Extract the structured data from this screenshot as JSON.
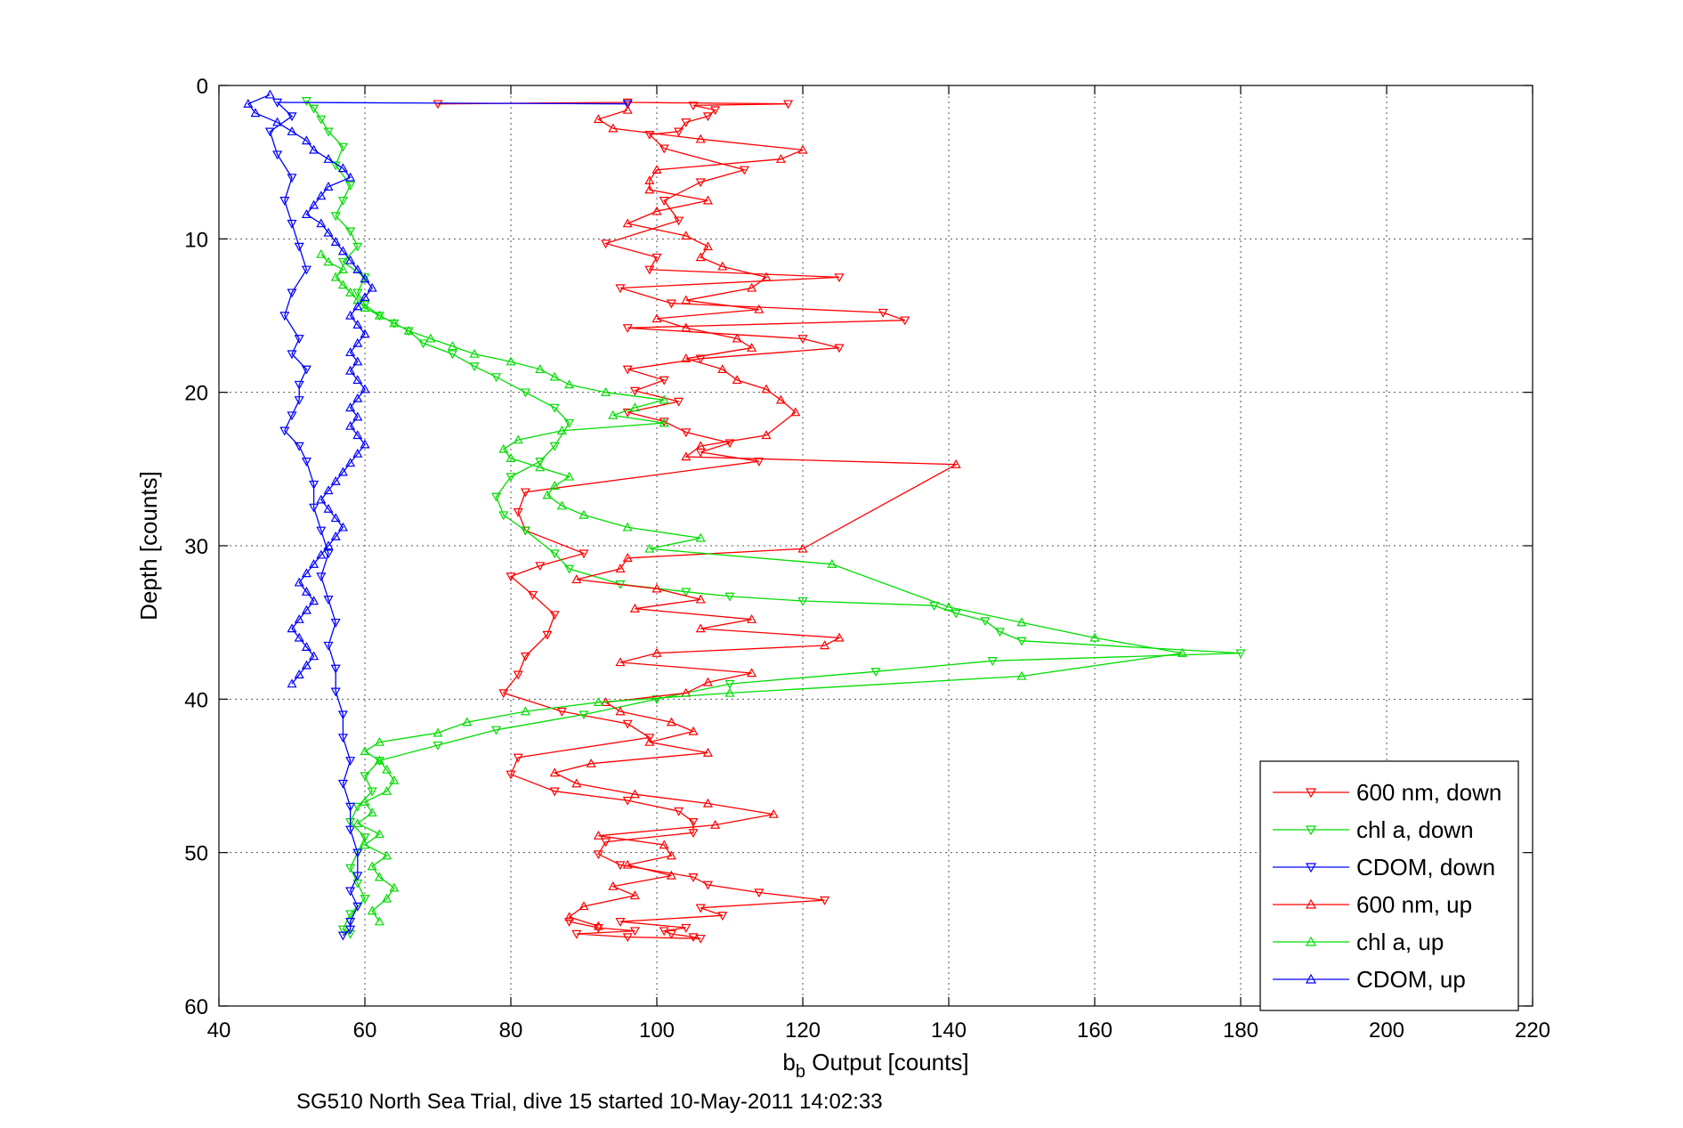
{
  "chart_data": {
    "type": "line",
    "title": "",
    "xlabel": {
      "main": "b",
      "subscript": "b",
      "rest": " Output [counts]"
    },
    "ylabel": "Depth [counts]",
    "caption": "SG510 North Sea Trial, dive 15 started 10-May-2011 14:02:33",
    "xlim": [
      40,
      220
    ],
    "ylim": [
      0,
      60
    ],
    "y_reversed": true,
    "x_ticks": [
      "40",
      "60",
      "80",
      "100",
      "120",
      "140",
      "160",
      "180",
      "200",
      "220"
    ],
    "y_ticks": [
      "0",
      "10",
      "20",
      "30",
      "40",
      "50",
      "60"
    ],
    "grid": true,
    "legend_position": "bottom-right",
    "series": [
      {
        "name": "600 nm, down",
        "color": "#ff0000",
        "marker": "down",
        "x": [
          70,
          96,
          118,
          105,
          108,
          107,
          104,
          103,
          99,
          101,
          112,
          106,
          101,
          103,
          93,
          100,
          99,
          125,
          95,
          102,
          131,
          134,
          96,
          120,
          125,
          106,
          96,
          101,
          97,
          103,
          96,
          101,
          104,
          110,
          106,
          114,
          82,
          81,
          82,
          90,
          84,
          80,
          83,
          86,
          85,
          82,
          81,
          79,
          87,
          96,
          99,
          81,
          80,
          86,
          96,
          103,
          105,
          105,
          93,
          92,
          95,
          105,
          107,
          114,
          123,
          106,
          109,
          95,
          104,
          101,
          102,
          105,
          106,
          96,
          89,
          97,
          92,
          88
        ],
        "y": [
          1.2,
          1.1,
          1.2,
          1.3,
          1.6,
          2,
          2.4,
          3,
          3.2,
          4.1,
          5.5,
          6.3,
          7.5,
          8.8,
          10.3,
          11.2,
          12,
          12.5,
          13.2,
          14.2,
          14.8,
          15.3,
          15.8,
          16.5,
          17.1,
          17.8,
          18.5,
          19.2,
          19.9,
          20.6,
          21.3,
          21.9,
          22.6,
          23.3,
          23.9,
          24.5,
          26.5,
          27.8,
          29,
          30.5,
          31.3,
          32,
          33.2,
          34.5,
          35.8,
          37.2,
          38.4,
          39.6,
          40.8,
          41.6,
          42.5,
          43.8,
          44.9,
          46,
          46.6,
          47.3,
          48,
          48.7,
          49.3,
          50.1,
          50.8,
          51.6,
          52.1,
          52.6,
          53.1,
          53.6,
          54.1,
          54.5,
          54.9,
          55.1,
          55.3,
          55.5,
          55.6,
          55.5,
          55.3,
          55.1,
          54.9,
          54.5
        ]
      },
      {
        "name": "chl a, down",
        "color": "#00dd00",
        "marker": "down",
        "x": [
          52,
          53,
          54,
          55,
          57,
          56,
          58,
          57,
          56,
          58,
          59,
          57,
          60,
          59,
          60,
          62,
          64,
          66,
          68,
          72,
          75,
          78,
          82,
          86,
          88,
          86,
          84,
          80,
          78,
          79,
          82,
          86,
          88,
          95,
          104,
          110,
          120,
          138,
          141,
          145,
          147,
          150,
          180,
          146,
          130,
          110,
          100,
          90,
          78,
          70,
          62,
          60,
          61,
          59,
          58,
          60,
          59,
          58,
          59,
          60,
          58,
          57,
          58
        ],
        "y": [
          1,
          1.5,
          2.2,
          3,
          4,
          5.2,
          6.5,
          7.5,
          8.5,
          9.5,
          10.5,
          11.5,
          12.5,
          13.5,
          14.3,
          15,
          15.5,
          16,
          16.8,
          17.5,
          18.3,
          19,
          20,
          21,
          22,
          23.5,
          24.5,
          25.5,
          26.8,
          28,
          29,
          30.5,
          31.5,
          32.5,
          33,
          33.3,
          33.6,
          33.9,
          34.4,
          34.9,
          35.6,
          36.2,
          37,
          37.5,
          38.2,
          39,
          40,
          41,
          42,
          43,
          44,
          45,
          46,
          47,
          48,
          49,
          50,
          51,
          52,
          53,
          54,
          55,
          55.3
        ]
      },
      {
        "name": "CDOM, down",
        "color": "#0000ff",
        "marker": "down",
        "x": [
          96,
          48,
          50,
          47,
          48,
          50,
          49,
          50,
          51,
          52,
          50,
          49,
          51,
          50,
          52,
          51,
          51,
          50,
          49,
          51,
          52,
          53,
          53,
          54,
          55,
          54,
          55,
          56,
          55,
          56,
          56,
          57,
          57,
          58,
          57,
          58,
          58,
          59,
          59,
          58,
          59,
          58,
          58,
          57
        ],
        "y": [
          1.2,
          1.1,
          2,
          3,
          4.5,
          6,
          7.5,
          9,
          10.5,
          12,
          13.5,
          15,
          16.5,
          17.5,
          18.5,
          19.5,
          20.5,
          21.5,
          22.5,
          23.5,
          24.5,
          26,
          27.5,
          29,
          30.5,
          32,
          33.5,
          35,
          36.5,
          38,
          39.5,
          41,
          42.5,
          44,
          45.5,
          47,
          48.5,
          50,
          51.5,
          52.5,
          53.5,
          54.5,
          55,
          55.4
        ]
      },
      {
        "name": "600 nm, up",
        "color": "#ff0000",
        "marker": "up",
        "x": [
          92,
          88,
          90,
          97,
          94,
          102,
          96,
          102,
          101,
          92,
          108,
          116,
          107,
          97,
          89,
          86,
          91,
          107,
          99,
          105,
          102,
          95,
          93,
          104,
          107,
          113,
          95,
          100,
          123,
          125,
          106,
          113,
          97,
          106,
          100,
          89,
          95,
          96,
          120,
          141,
          104,
          106,
          115,
          119,
          117,
          115,
          111,
          109,
          104,
          113,
          111,
          104,
          100,
          114,
          104,
          113,
          115,
          109,
          106,
          107,
          104,
          96,
          100,
          107,
          99,
          99,
          100,
          117,
          120,
          106,
          94,
          92,
          96
        ],
        "y": [
          54.8,
          54.2,
          53.5,
          52.8,
          52.2,
          51.5,
          50.8,
          50.2,
          49.5,
          48.9,
          48.2,
          47.5,
          46.8,
          46.2,
          45.5,
          44.8,
          44.2,
          43.5,
          42.8,
          42.1,
          41.5,
          40.8,
          40.2,
          39.6,
          38.9,
          38.3,
          37.6,
          37,
          36.5,
          36,
          35.4,
          34.8,
          34.1,
          33.5,
          32.8,
          32.2,
          31.5,
          30.8,
          30.2,
          24.7,
          24.2,
          23.5,
          22.8,
          21.3,
          20.5,
          19.8,
          19.2,
          18.5,
          17.8,
          17.1,
          16.5,
          15.8,
          15.2,
          14.6,
          14,
          13.2,
          12.5,
          11.8,
          11.2,
          10.5,
          9.8,
          9,
          8.2,
          7.5,
          6.8,
          6.2,
          5.5,
          4.8,
          4.2,
          3.5,
          2.8,
          2.2,
          1.6
        ]
      },
      {
        "name": "chl a, up",
        "color": "#00dd00",
        "marker": "up",
        "x": [
          62,
          61,
          63,
          64,
          62,
          61,
          63,
          60,
          62,
          59,
          61,
          60,
          63,
          64,
          63,
          62,
          60,
          62,
          70,
          74,
          82,
          92,
          110,
          150,
          172,
          160,
          150,
          140,
          124,
          99,
          106,
          96,
          90,
          87,
          85,
          86,
          88,
          84,
          80,
          79,
          81,
          87,
          101,
          94,
          97,
          101,
          93,
          88,
          86,
          84,
          80,
          75,
          72,
          69,
          66,
          64,
          62,
          60,
          59,
          58,
          57,
          56,
          57,
          55,
          54
        ],
        "y": [
          54.5,
          53.8,
          53,
          52.3,
          51.6,
          50.9,
          50.2,
          49.5,
          48.8,
          48.1,
          47.4,
          46.7,
          46,
          45.3,
          44.6,
          44,
          43.4,
          42.8,
          42.2,
          41.5,
          40.8,
          40.2,
          39.6,
          38.5,
          37,
          36,
          35,
          34,
          31.2,
          30.2,
          29.5,
          28.8,
          28,
          27.4,
          26.7,
          26.1,
          25.5,
          24.9,
          24.3,
          23.7,
          23.1,
          22.5,
          22,
          21.5,
          21,
          20.5,
          20,
          19.5,
          19,
          18.5,
          18,
          17.5,
          17,
          16.5,
          16,
          15.5,
          15,
          14.5,
          14,
          13.5,
          13,
          12.5,
          12,
          11.5,
          11
        ]
      },
      {
        "name": "CDOM, up",
        "color": "#0000ff",
        "marker": "up",
        "x": [
          47,
          44,
          45,
          48,
          50,
          52,
          53,
          55,
          57,
          58,
          55,
          54,
          53,
          52,
          54,
          55,
          56,
          57,
          58,
          59,
          60,
          61,
          60,
          59,
          58,
          59,
          60,
          59,
          58,
          59,
          58,
          59,
          60,
          59,
          58,
          59,
          58,
          59,
          60,
          59,
          58,
          57,
          56,
          55,
          54,
          55,
          56,
          57,
          56,
          55,
          54,
          53,
          52,
          51,
          52,
          53,
          52,
          51,
          50,
          51,
          52,
          53,
          52,
          51,
          50
        ],
        "y": [
          0.6,
          1.2,
          1.8,
          2.4,
          3,
          3.6,
          4.2,
          4.8,
          5.4,
          6,
          6.6,
          7.2,
          7.8,
          8.4,
          9,
          9.6,
          10.2,
          10.8,
          11.4,
          12,
          12.6,
          13.2,
          13.8,
          14.4,
          15,
          15.6,
          16.2,
          16.8,
          17.4,
          18,
          18.6,
          19.2,
          19.8,
          20.4,
          21,
          21.6,
          22.2,
          22.8,
          23.4,
          24,
          24.6,
          25.2,
          25.8,
          26.4,
          27,
          27.6,
          28.2,
          28.8,
          29.4,
          30,
          30.6,
          31.2,
          31.8,
          32.4,
          33,
          33.6,
          34.2,
          34.8,
          35.4,
          36,
          36.6,
          37.2,
          37.8,
          38.4,
          39
        ]
      }
    ]
  }
}
